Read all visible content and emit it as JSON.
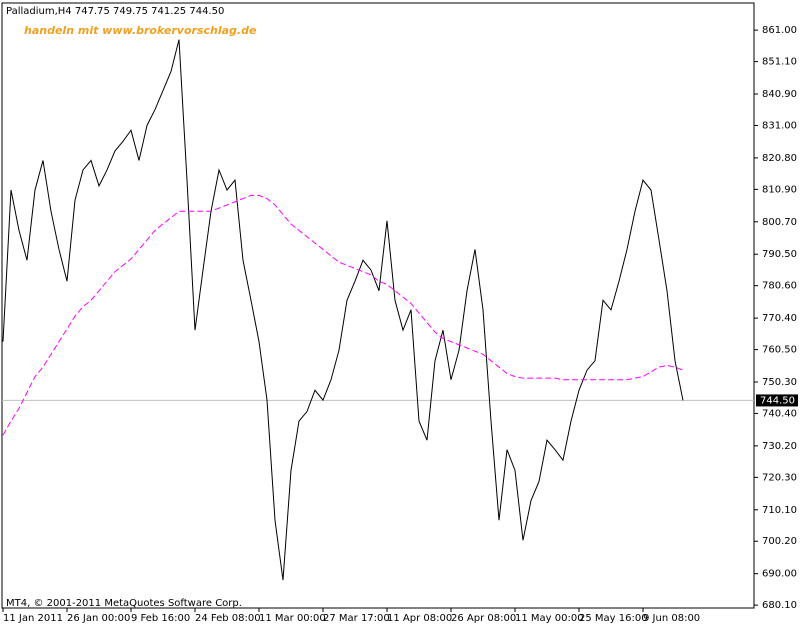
{
  "chart_data": {
    "type": "line",
    "title": "Palladium,H4  747.75 749.75 741.25 744.50",
    "annotation": "handeln mit www.brokervorschlag.de",
    "footer": "MT4, © 2001-2011 MetaQuotes Software Corp.",
    "current_price": {
      "value": 744.5,
      "label": "744.50"
    },
    "categories": [
      "11 Jan 2011",
      null,
      null,
      null,
      null,
      null,
      null,
      null,
      "26 Jan 00:00",
      null,
      null,
      null,
      null,
      null,
      null,
      null,
      "9 Feb 16:00",
      null,
      null,
      null,
      null,
      null,
      null,
      null,
      "24 Feb 08:00",
      null,
      null,
      null,
      null,
      null,
      null,
      null,
      "11 Mar 00:00",
      null,
      null,
      null,
      null,
      null,
      null,
      null,
      "27 Mar 17:00",
      null,
      null,
      null,
      null,
      null,
      null,
      null,
      "11 Apr 08:00",
      null,
      null,
      null,
      null,
      null,
      null,
      null,
      "26 Apr 08:00",
      null,
      null,
      null,
      null,
      null,
      null,
      null,
      "11 May 00:00",
      null,
      null,
      null,
      null,
      null,
      null,
      null,
      "25 May 16:00",
      null,
      null,
      null,
      null,
      null,
      null,
      null,
      "9 Jun 08:00",
      null,
      null,
      null,
      null,
      null
    ],
    "series": [
      {
        "color": "#000000",
        "dashed": false,
        "values": [
          763,
          810.7,
          798,
          788.6,
          810.7,
          820,
          804,
          792,
          782,
          807.5,
          817,
          820,
          812,
          817,
          823,
          826,
          829.5,
          820,
          831,
          836,
          842,
          848,
          858,
          813.8,
          766.6,
          785.5,
          804,
          817,
          810.7,
          813.8,
          788.6,
          776,
          763,
          744.6,
          706.8,
          688,
          722.5,
          738,
          741,
          747.7,
          744.6,
          751,
          760.3,
          776,
          782,
          788.6,
          785.5,
          779,
          801,
          776,
          766.6,
          773,
          738,
          732,
          757,
          766.6,
          751,
          760.3,
          779,
          792,
          773,
          738,
          706.8,
          729,
          722.5,
          700.5,
          713,
          719,
          732,
          729,
          725.7,
          738,
          747.7,
          754,
          757,
          776,
          773,
          782,
          792,
          804,
          813.8,
          810.7,
          795,
          779,
          757,
          744.5
        ]
      },
      {
        "color": "#ff00ff",
        "dashed": true,
        "values": [
          733.6,
          738,
          742,
          747,
          752,
          755,
          759,
          763,
          767,
          771,
          774,
          776,
          779,
          782,
          785,
          787,
          789,
          792,
          795,
          798,
          800,
          802,
          804,
          804,
          804,
          804,
          804,
          805,
          806,
          807,
          808,
          809,
          809,
          808,
          806,
          803,
          800,
          798,
          796,
          794,
          792,
          790,
          788,
          787,
          786,
          785,
          784,
          782,
          781,
          779,
          777,
          775,
          772,
          769,
          766,
          764,
          763,
          762,
          761,
          760,
          759,
          757,
          755,
          753,
          752,
          751.5,
          751.5,
          751.5,
          751.5,
          751.5,
          751,
          751,
          751,
          751,
          751,
          751,
          751,
          751,
          751,
          751.5,
          752,
          753.5,
          755,
          755.5,
          755,
          754
        ]
      }
    ],
    "ylim": [
      679.2,
      868.9
    ],
    "yticks": [
      {
        "value": 861,
        "label": "861.00"
      },
      {
        "value": 851.1,
        "label": "851.10"
      },
      {
        "value": 840.9,
        "label": "840.90"
      },
      {
        "value": 831,
        "label": "831.00"
      },
      {
        "value": 820.8,
        "label": "820.80"
      },
      {
        "value": 810.9,
        "label": "810.90"
      },
      {
        "value": 800.7,
        "label": "800.70"
      },
      {
        "value": 790.5,
        "label": "790.50"
      },
      {
        "value": 780.6,
        "label": "780.60"
      },
      {
        "value": 770.4,
        "label": "770.40"
      },
      {
        "value": 760.5,
        "label": "760.50"
      },
      {
        "value": 750.3,
        "label": "750.30"
      },
      {
        "value": 740.4,
        "label": "740.40"
      },
      {
        "value": 730.2,
        "label": "730.20"
      },
      {
        "value": 720.3,
        "label": "720.30"
      },
      {
        "value": 710.1,
        "label": "710.10"
      },
      {
        "value": 700.2,
        "label": "700.20"
      },
      {
        "value": 690,
        "label": "690.00"
      },
      {
        "value": 680.1,
        "label": "680.10"
      }
    ]
  }
}
